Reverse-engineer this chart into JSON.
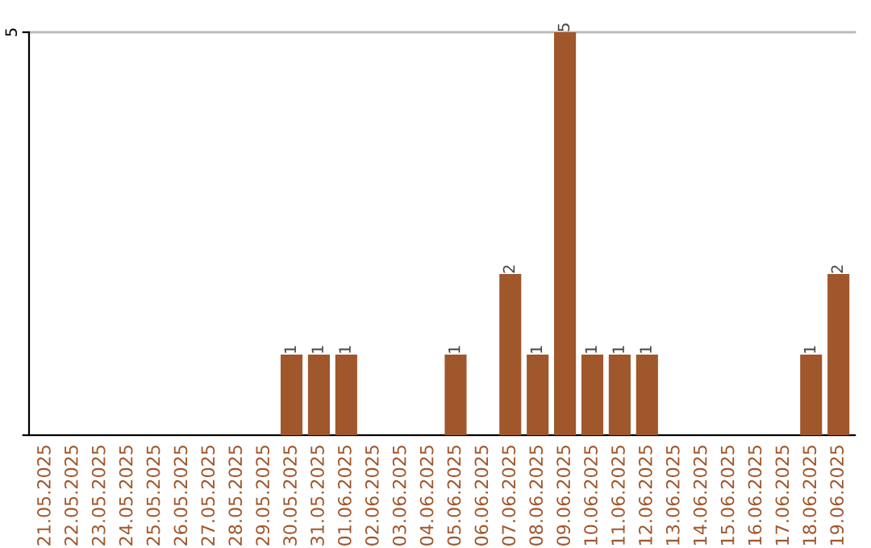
{
  "chart_data": {
    "type": "bar",
    "categories": [
      "21.05.2025",
      "22.05.2025",
      "23.05.2025",
      "24.05.2025",
      "25.05.2025",
      "26.05.2025",
      "27.05.2025",
      "28.05.2025",
      "29.05.2025",
      "30.05.2025",
      "31.05.2025",
      "01.06.2025",
      "02.06.2025",
      "03.06.2025",
      "04.06.2025",
      "05.06.2025",
      "06.06.2025",
      "07.06.2025",
      "08.06.2025",
      "09.06.2025",
      "10.06.2025",
      "11.06.2025",
      "12.06.2025",
      "13.06.2025",
      "14.06.2025",
      "15.06.2025",
      "16.06.2025",
      "17.06.2025",
      "18.06.2025",
      "19.06.2025"
    ],
    "values": [
      0,
      0,
      0,
      0,
      0,
      0,
      0,
      0,
      0,
      1,
      1,
      1,
      0,
      0,
      0,
      1,
      0,
      2,
      1,
      5,
      1,
      1,
      1,
      0,
      0,
      0,
      0,
      0,
      1,
      2
    ],
    "value_labels": [
      null,
      null,
      null,
      null,
      null,
      null,
      null,
      null,
      null,
      "1",
      "1",
      "1",
      null,
      null,
      null,
      "1",
      null,
      "2",
      "1",
      "5",
      "1",
      "1",
      "1",
      null,
      null,
      null,
      null,
      null,
      "1",
      "2"
    ],
    "color": "#a0572b",
    "ylim": [
      0,
      5
    ],
    "yticks": [
      {
        "value": 0,
        "label": null
      },
      5
    ],
    "grid": "y"
  }
}
